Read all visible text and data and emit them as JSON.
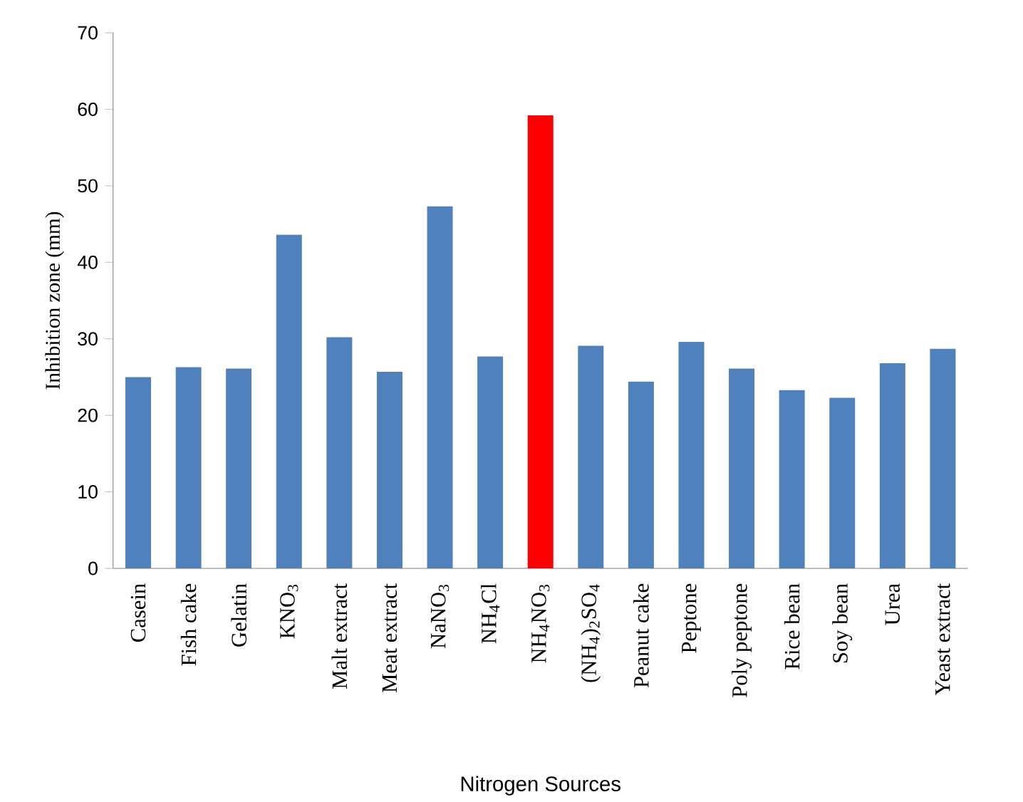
{
  "chart_data": {
    "type": "bar",
    "xlabel": "Nitrogen Sources",
    "ylabel": "Inhibition zone (mm)",
    "categories": [
      "Casein",
      "Fish cake",
      "Gelatin",
      "KNO$_{3}$",
      "Malt extract",
      "Meat extract",
      "NaNO$_{3}$",
      "NH$_{4}$Cl",
      "NH$_{4}$NO$_{3}$",
      "(NH$_{4}$)$_{2}$SO$_{4}$",
      "Peanut cake",
      "Peptone",
      "Poly peptone",
      "Rice bean",
      "Soy bean",
      "Urea",
      "Yeast extract"
    ],
    "values": [
      25,
      26.3,
      26.1,
      43.6,
      30.2,
      25.7,
      47.3,
      27.7,
      59.2,
      29.1,
      24.4,
      29.6,
      26.1,
      23.3,
      22.3,
      26.8,
      28.7
    ],
    "colors": [
      "#4f81bd",
      "#4f81bd",
      "#4f81bd",
      "#4f81bd",
      "#4f81bd",
      "#4f81bd",
      "#4f81bd",
      "#4f81bd",
      "#ff0000",
      "#4f81bd",
      "#4f81bd",
      "#4f81bd",
      "#4f81bd",
      "#4f81bd",
      "#4f81bd",
      "#4f81bd",
      "#4f81bd"
    ],
    "ylim": [
      0,
      70
    ],
    "yticks": [
      0,
      10,
      20,
      30,
      40,
      50,
      60,
      70
    ],
    "grid": false
  }
}
